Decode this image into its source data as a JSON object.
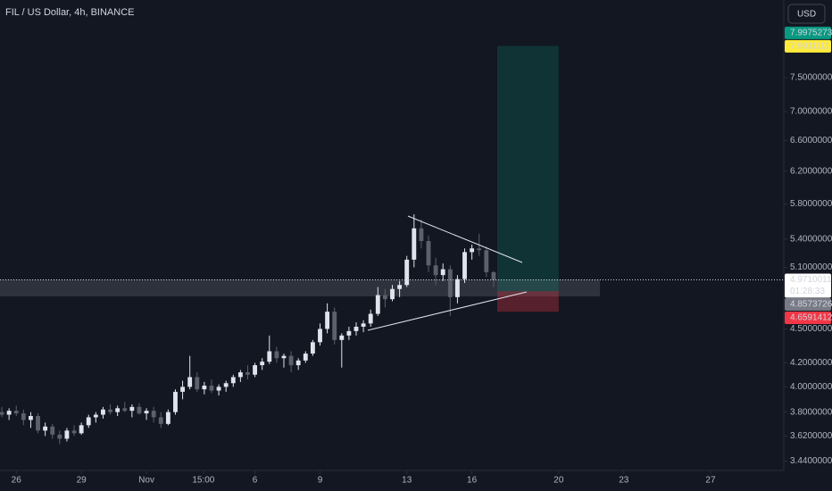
{
  "chart_data": {
    "type": "candlestick",
    "title": "FIL / US Dollar, 4h, BINANCE",
    "currency": "USD",
    "log_scale": true,
    "up_color": "#e0e3eb",
    "down_color": "#5d606b",
    "x": [
      -16,
      -8,
      0,
      8,
      16,
      24,
      32,
      40,
      48,
      56,
      64,
      72,
      80,
      88,
      96,
      104,
      112,
      120,
      128,
      136,
      144,
      152,
      160,
      168,
      176,
      184,
      192,
      200,
      208,
      216,
      224,
      232,
      240,
      248,
      256,
      264,
      272,
      280,
      288,
      296,
      304,
      312,
      320,
      328,
      336,
      344,
      352,
      360,
      368,
      376,
      384,
      392,
      400,
      408,
      416,
      424,
      432,
      440,
      448,
      456,
      464,
      472,
      480,
      488,
      496,
      504,
      512,
      520,
      528
    ],
    "open": [
      3.8,
      3.78,
      3.81,
      3.79,
      3.74,
      3.77,
      3.66,
      3.69,
      3.63,
      3.6,
      3.66,
      3.64,
      3.7,
      3.76,
      3.78,
      3.82,
      3.8,
      3.83,
      3.81,
      3.84,
      3.79,
      3.81,
      3.76,
      3.71,
      3.8,
      3.96,
      4.0,
      4.08,
      3.98,
      4.01,
      3.97,
      4.0,
      4.03,
      4.08,
      4.12,
      4.1,
      4.18,
      4.21,
      4.3,
      4.24,
      4.26,
      4.18,
      4.22,
      4.28,
      4.38,
      4.5,
      4.66,
      4.4,
      4.44,
      4.48,
      4.52,
      4.55,
      4.64,
      4.82,
      4.78,
      4.88,
      4.92,
      5.18,
      5.52,
      5.38,
      5.12,
      5.02,
      5.08,
      4.8,
      4.98,
      5.26,
      5.3,
      5.28,
      5.05
    ],
    "high": [
      3.84,
      3.83,
      3.85,
      3.82,
      3.8,
      3.79,
      3.72,
      3.71,
      3.66,
      3.68,
      3.7,
      3.72,
      3.78,
      3.8,
      3.84,
      3.86,
      3.85,
      3.88,
      3.86,
      3.87,
      3.83,
      3.84,
      3.8,
      3.82,
      3.98,
      4.05,
      4.26,
      4.12,
      4.04,
      4.06,
      4.02,
      4.05,
      4.1,
      4.14,
      4.18,
      4.2,
      4.24,
      4.44,
      4.34,
      4.28,
      4.3,
      4.24,
      4.3,
      4.4,
      4.55,
      4.74,
      4.7,
      4.46,
      4.52,
      4.56,
      4.58,
      4.68,
      4.9,
      4.88,
      4.92,
      4.96,
      5.22,
      5.68,
      5.62,
      5.44,
      5.2,
      5.14,
      5.12,
      5.02,
      5.3,
      5.34,
      5.46,
      5.32,
      5.06
    ],
    "low": [
      3.76,
      3.74,
      3.77,
      3.7,
      3.68,
      3.64,
      3.62,
      3.6,
      3.56,
      3.58,
      3.62,
      3.63,
      3.68,
      3.72,
      3.75,
      3.78,
      3.77,
      3.8,
      3.76,
      3.78,
      3.74,
      3.72,
      3.68,
      3.7,
      3.78,
      3.9,
      3.98,
      3.96,
      3.94,
      3.95,
      3.93,
      3.96,
      4.0,
      4.04,
      4.06,
      4.08,
      4.14,
      4.19,
      4.2,
      4.16,
      4.12,
      4.14,
      4.2,
      4.26,
      4.35,
      4.46,
      4.36,
      4.16,
      4.4,
      4.44,
      4.47,
      4.52,
      4.62,
      4.7,
      4.76,
      4.8,
      4.9,
      5.1,
      5.3,
      5.05,
      4.92,
      4.96,
      4.62,
      4.74,
      4.94,
      5.18,
      5.22,
      5.0,
      4.9
    ],
    "close": [
      3.78,
      3.81,
      3.79,
      3.74,
      3.77,
      3.66,
      3.69,
      3.63,
      3.6,
      3.66,
      3.64,
      3.7,
      3.76,
      3.78,
      3.82,
      3.8,
      3.83,
      3.81,
      3.84,
      3.79,
      3.81,
      3.76,
      3.71,
      3.8,
      3.96,
      4.0,
      4.08,
      3.98,
      4.01,
      3.97,
      4.0,
      4.03,
      4.08,
      4.12,
      4.1,
      4.18,
      4.21,
      4.3,
      4.24,
      4.26,
      4.18,
      4.22,
      4.28,
      4.38,
      4.5,
      4.66,
      4.4,
      4.44,
      4.48,
      4.52,
      4.55,
      4.64,
      4.82,
      4.78,
      4.88,
      4.92,
      5.18,
      5.52,
      5.38,
      5.12,
      5.02,
      5.08,
      4.8,
      4.98,
      5.26,
      5.3,
      5.28,
      5.05,
      4.9710011
    ],
    "countdown": "01:28:33",
    "xlim": [
      -18,
      849
    ],
    "xticks": [
      {
        "value": 0,
        "label": "26"
      },
      {
        "value": 72,
        "label": "29"
      },
      {
        "value": 144,
        "label": "Nov"
      },
      {
        "value": 207,
        "label": "15:00"
      },
      {
        "value": 264,
        "label": "6"
      },
      {
        "value": 336,
        "label": "9"
      },
      {
        "value": 432,
        "label": "13"
      },
      {
        "value": 504,
        "label": "16"
      },
      {
        "value": 600,
        "label": "20"
      },
      {
        "value": 672,
        "label": "23"
      },
      {
        "value": 768,
        "label": "27"
      }
    ],
    "ylim": [
      3.375,
      8.78
    ],
    "yticks": [
      {
        "value": 7.5,
        "label": "7.5000000"
      },
      {
        "value": 7.0,
        "label": "7.0000000"
      },
      {
        "value": 6.6,
        "label": "6.6000000"
      },
      {
        "value": 6.2,
        "label": "6.2000000"
      },
      {
        "value": 5.8,
        "label": "5.8000000"
      },
      {
        "value": 5.4,
        "label": "5.4000000"
      },
      {
        "value": 5.1,
        "label": "5.1000000"
      },
      {
        "value": 4.5,
        "label": "4.5000000"
      },
      {
        "value": 4.2,
        "label": "4.2000000"
      },
      {
        "value": 4.0,
        "label": "4.0000000"
      },
      {
        "value": 3.8,
        "label": "3.8000000"
      },
      {
        "value": 3.62,
        "label": "3.6200000"
      },
      {
        "value": 3.44,
        "label": "3.4400000"
      }
    ],
    "price_markers": [
      {
        "value": 7.9975273,
        "color": "#089981",
        "text_color": "#ffffff"
      },
      {
        "value": 7.9911111,
        "color": "#ffeb3b",
        "text_color": "#131722"
      },
      {
        "value": 4.8573726,
        "color": "#787b86",
        "text_color": "#ffffff"
      },
      {
        "value": 4.6591412,
        "color": "#f23645",
        "text_color": "#ffffff"
      }
    ],
    "position_x": [
      532,
      600
    ],
    "last_price_color": "#ffffff"
  }
}
